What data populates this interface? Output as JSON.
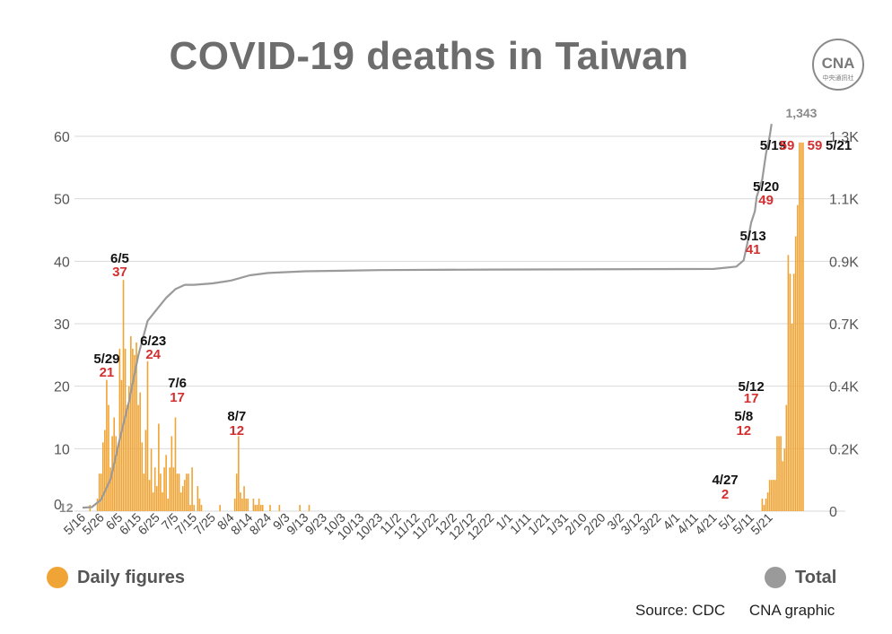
{
  "title": "COVID-19 deaths in Taiwan",
  "logo": {
    "icon": "cna-logo-icon",
    "text": "CNA",
    "subtext": "中央通訊社"
  },
  "colors": {
    "daily": "#f0a435",
    "total": "#9a9a9a",
    "highlight": "#d32f2f",
    "grid": "#d9d9d9"
  },
  "legend": {
    "daily": "Daily figures",
    "total": "Total"
  },
  "source": "Source: CDC",
  "credit": "CNA graphic",
  "chart_data": {
    "type": "bar+line",
    "x_start": "5/16",
    "x_end": "5/21",
    "x_tick_labels": [
      "5/16",
      "5/26",
      "6/5",
      "6/15",
      "6/25",
      "7/5",
      "7/15",
      "7/25",
      "8/4",
      "8/14",
      "8/24",
      "9/3",
      "9/13",
      "9/23",
      "10/3",
      "10/13",
      "10/23",
      "11/2",
      "11/12",
      "11/22",
      "12/2",
      "12/12",
      "12/22",
      "1/1",
      "1/11",
      "1/21",
      "1/31",
      "2/10",
      "2/20",
      "3/2",
      "3/12",
      "3/22",
      "4/1",
      "4/11",
      "4/21",
      "5/1",
      "5/11",
      "5/21"
    ],
    "left_axis": {
      "ticks": [
        0,
        10,
        20,
        30,
        40,
        50,
        60
      ],
      "ylim": [
        0,
        60
      ]
    },
    "right_axis": {
      "ticks": [
        "0",
        "0.2K",
        "0.4K",
        "0.7K",
        "0.9K",
        "1.1K",
        "1.3K"
      ],
      "ylim": [
        0,
        1300
      ]
    },
    "series": [
      {
        "name": "Daily figures",
        "kind": "bar",
        "axis": "left",
        "values": [
          0,
          0,
          0,
          0,
          1,
          0,
          0,
          0,
          2,
          6,
          6,
          11,
          13,
          21,
          17,
          7,
          12,
          15,
          12,
          10,
          26,
          21,
          37,
          26,
          17,
          20,
          28,
          26,
          25,
          27,
          17,
          19,
          11,
          6,
          13,
          24,
          5,
          10,
          3,
          7,
          4,
          14,
          6,
          3,
          7,
          9,
          2,
          7,
          12,
          7,
          15,
          6,
          6,
          3,
          4,
          5,
          6,
          6,
          1,
          7,
          1,
          0,
          4,
          2,
          1,
          0,
          0,
          0,
          0,
          0,
          0,
          0,
          0,
          0,
          1,
          0,
          0,
          0,
          0,
          0,
          0,
          0,
          2,
          6,
          12,
          3,
          2,
          4,
          2,
          2,
          0,
          0,
          2,
          1,
          1,
          2,
          1,
          1,
          0,
          0,
          0,
          1,
          0,
          0,
          0,
          0,
          1,
          0,
          0,
          0,
          0,
          0,
          0,
          0,
          0,
          0,
          0,
          1,
          0,
          0,
          0,
          0,
          1,
          0,
          0,
          0,
          0,
          0,
          0,
          0,
          0,
          0,
          0,
          0,
          0,
          0,
          0,
          0,
          0,
          0,
          0,
          0,
          0,
          0,
          0,
          0,
          0,
          0,
          0,
          0,
          0,
          0,
          0,
          0,
          0,
          0,
          0,
          0,
          0,
          0,
          0,
          0,
          0,
          0,
          0,
          0,
          0,
          0,
          0,
          0,
          0,
          0,
          0,
          0,
          0,
          0,
          0,
          0,
          0,
          0,
          0,
          0,
          0,
          0,
          0,
          0,
          0,
          0,
          0,
          0,
          0,
          0,
          0,
          0,
          0,
          0,
          0,
          0,
          0,
          0,
          0,
          0,
          0,
          0,
          0,
          0,
          0,
          0,
          0,
          0,
          0,
          0,
          0,
          0,
          0,
          0,
          0,
          0,
          0,
          0,
          0,
          0,
          0,
          0,
          0,
          0,
          0,
          0,
          0,
          0,
          0,
          0,
          0,
          0,
          0,
          0,
          0,
          0,
          0,
          0,
          0,
          0,
          0,
          0,
          0,
          0,
          0,
          0,
          0,
          0,
          0,
          0,
          0,
          0,
          0,
          0,
          0,
          0,
          0,
          0,
          0,
          0,
          0,
          0,
          0,
          0,
          0,
          0,
          0,
          0,
          0,
          0,
          0,
          0,
          0,
          0,
          0,
          0,
          0,
          0,
          0,
          0,
          0,
          0,
          0,
          0,
          0,
          0,
          0,
          0,
          0,
          0,
          0,
          0,
          0,
          0,
          0,
          0,
          0,
          0,
          0,
          0,
          0,
          0,
          0,
          0,
          0,
          0,
          0,
          0,
          0,
          0,
          0,
          0,
          0,
          0,
          0,
          0,
          0,
          0,
          0,
          0,
          0,
          0,
          0,
          0,
          0,
          0,
          0,
          0,
          0,
          0,
          0,
          0,
          0,
          0,
          0,
          0,
          0,
          0,
          0,
          0,
          0,
          0,
          0,
          0,
          0,
          0,
          0,
          0,
          0,
          0,
          0,
          0,
          0,
          0,
          0,
          0,
          0,
          0,
          0,
          0,
          0,
          0,
          0,
          0,
          2,
          1,
          2,
          3,
          5,
          5,
          5,
          5,
          12,
          12,
          12,
          8,
          10,
          17,
          41,
          38,
          30,
          38,
          44,
          49,
          59,
          59,
          59
        ]
      },
      {
        "name": "Total",
        "kind": "line",
        "axis": "right",
        "points": [
          [
            0,
            12
          ],
          [
            5,
            14
          ],
          [
            10,
            40
          ],
          [
            15,
            110
          ],
          [
            20,
            250
          ],
          [
            25,
            380
          ],
          [
            30,
            540
          ],
          [
            35,
            660
          ],
          [
            40,
            700
          ],
          [
            45,
            740
          ],
          [
            50,
            770
          ],
          [
            55,
            785
          ],
          [
            60,
            785
          ],
          [
            70,
            790
          ],
          [
            80,
            800
          ],
          [
            90,
            818
          ],
          [
            100,
            826
          ],
          [
            120,
            832
          ],
          [
            160,
            836
          ],
          [
            220,
            838
          ],
          [
            340,
            840
          ],
          [
            352,
            848
          ],
          [
            356,
            870
          ],
          [
            358,
            930
          ],
          [
            360,
            1000
          ],
          [
            362,
            1040
          ],
          [
            363,
            1090
          ],
          [
            366,
            1150
          ],
          [
            368,
            1240
          ],
          [
            370,
            1300
          ],
          [
            371,
            1343
          ]
        ]
      }
    ],
    "annotations": [
      {
        "date": "5/29",
        "value": "21"
      },
      {
        "date": "6/5",
        "value": "37"
      },
      {
        "date": "6/23",
        "value": "24"
      },
      {
        "date": "7/6",
        "value": "17"
      },
      {
        "date": "8/7",
        "value": "12"
      },
      {
        "date": "4/27",
        "value": "2"
      },
      {
        "date": "5/8",
        "value": "12"
      },
      {
        "date": "5/12",
        "value": "17"
      },
      {
        "date": "5/13",
        "value": "41"
      },
      {
        "date": "5/20",
        "value": "49"
      },
      {
        "date": "5/19",
        "value": "59"
      },
      {
        "date": "5/21",
        "value": "59"
      }
    ],
    "total_start_label": "12",
    "total_end_label": "1,343"
  }
}
